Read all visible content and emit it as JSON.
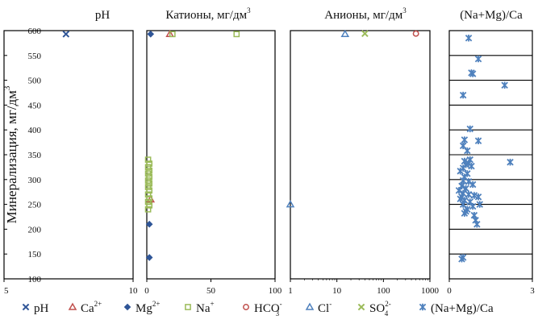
{
  "chart_data": [
    {
      "type": "scatter",
      "title": "pH",
      "ylabel": "Минерализация, мг/дм",
      "ylabel_sup": "3",
      "xlim": [
        5,
        10
      ],
      "ylim": [
        100,
        600
      ],
      "xticks": [
        "5",
        "10"
      ],
      "yticks": [
        "100",
        "150",
        "200",
        "250",
        "300",
        "350",
        "400",
        "450",
        "500",
        "550",
        "600"
      ],
      "grid": false,
      "series": [
        {
          "name": "pH",
          "marker": "x",
          "color": "#2f5597",
          "points": [
            [
              7.4,
              593
            ]
          ]
        }
      ]
    },
    {
      "type": "scatter",
      "title": "Катионы, мг/дм",
      "title_sup": "3",
      "xlim": [
        0,
        100
      ],
      "ylim": [
        100,
        600
      ],
      "xticks": [
        "0",
        "50",
        "100"
      ],
      "grid": false,
      "series": [
        {
          "name": "Ca",
          "marker": "triangle",
          "color": "#c0504d",
          "points": [
            [
              3,
              260
            ],
            [
              18,
              593
            ]
          ]
        },
        {
          "name": "Mg",
          "marker": "diamond",
          "color": "#2f5597",
          "points": [
            [
              2,
              210
            ],
            [
              2,
              143
            ],
            [
              3,
              593
            ]
          ]
        },
        {
          "name": "Na",
          "marker": "square",
          "color": "#9bbb59",
          "points": [
            [
              1,
              340
            ],
            [
              2,
              332
            ],
            [
              1,
              325
            ],
            [
              2,
              318
            ],
            [
              1,
              312
            ],
            [
              2,
              305
            ],
            [
              1,
              298
            ],
            [
              2,
              292
            ],
            [
              1,
              285
            ],
            [
              2,
              278
            ],
            [
              1,
              270
            ],
            [
              2,
              262
            ],
            [
              1,
              255
            ],
            [
              2,
              248
            ],
            [
              1,
              240
            ],
            [
              20,
              593
            ],
            [
              70,
              593
            ]
          ]
        }
      ]
    },
    {
      "type": "scatter",
      "title": "Анионы, мг/дм",
      "title_sup": "3",
      "xlim": [
        1,
        1000
      ],
      "xscale": "log",
      "ylim": [
        100,
        600
      ],
      "xticks": [
        "1",
        "10",
        "100",
        "1000"
      ],
      "grid": false,
      "series": [
        {
          "name": "HCO3",
          "marker": "circle",
          "color": "#c0504d",
          "points": [
            [
              500,
              594
            ]
          ]
        },
        {
          "name": "Cl",
          "marker": "triangle",
          "color": "#4f81bd",
          "points": [
            [
              1,
              250
            ],
            [
              15,
              593
            ]
          ]
        },
        {
          "name": "SO4",
          "marker": "x",
          "color": "#9bbb59",
          "points": [
            [
              40,
              594
            ]
          ]
        }
      ]
    },
    {
      "type": "scatter",
      "title": "(Na+Mg)/Ca",
      "xlim": [
        0,
        3
      ],
      "ylim": [
        100,
        600
      ],
      "xticks": [
        "0",
        "3"
      ],
      "grid": true,
      "gridlines": [
        150,
        200,
        250,
        300,
        350,
        400,
        450,
        500,
        550
      ],
      "series": [
        {
          "name": "(Na+Mg)/Ca",
          "marker": "asterisk",
          "color": "#4f81bd",
          "points": [
            [
              0.7,
              585
            ],
            [
              1.05,
              543
            ],
            [
              0.8,
              515
            ],
            [
              0.85,
              513
            ],
            [
              2.0,
              490
            ],
            [
              0.5,
              470
            ],
            [
              0.75,
              402
            ],
            [
              0.55,
              380
            ],
            [
              1.05,
              378
            ],
            [
              0.5,
              368
            ],
            [
              0.65,
              358
            ],
            [
              0.75,
              340
            ],
            [
              0.55,
              337
            ],
            [
              0.7,
              333
            ],
            [
              2.2,
              335
            ],
            [
              0.6,
              330
            ],
            [
              0.8,
              327
            ],
            [
              0.5,
              323
            ],
            [
              0.4,
              317
            ],
            [
              0.65,
              312
            ],
            [
              0.55,
              305
            ],
            [
              0.5,
              298
            ],
            [
              0.7,
              296
            ],
            [
              0.85,
              290
            ],
            [
              0.45,
              287
            ],
            [
              0.6,
              282
            ],
            [
              0.35,
              278
            ],
            [
              0.5,
              272
            ],
            [
              0.7,
              270
            ],
            [
              0.9,
              268
            ],
            [
              0.45,
              265
            ],
            [
              1.05,
              265
            ],
            [
              0.4,
              261
            ],
            [
              0.55,
              258
            ],
            [
              0.75,
              255
            ],
            [
              0.5,
              250
            ],
            [
              1.1,
              250
            ],
            [
              0.85,
              246
            ],
            [
              0.65,
              240
            ],
            [
              0.6,
              236
            ],
            [
              0.55,
              232
            ],
            [
              0.9,
              228
            ],
            [
              0.95,
              218
            ],
            [
              1.0,
              210
            ],
            [
              0.5,
              143
            ],
            [
              0.45,
              140
            ]
          ]
        }
      ]
    }
  ],
  "legend": [
    {
      "marker": "x",
      "color": "#2f5597",
      "text": "pH",
      "sup": "",
      "sub": ""
    },
    {
      "marker": "triangle",
      "color": "#c0504d",
      "text": "Ca",
      "sup": "2+",
      "sub": ""
    },
    {
      "marker": "diamond",
      "color": "#2f5597",
      "text": "Mg",
      "sup": "2+",
      "sub": ""
    },
    {
      "marker": "square",
      "color": "#9bbb59",
      "text": "Na",
      "sup": "+",
      "sub": ""
    },
    {
      "marker": "circle",
      "color": "#c0504d",
      "text": "HCO",
      "sup": "-",
      "sub": "3"
    },
    {
      "marker": "triangle",
      "color": "#4f81bd",
      "text": "Cl",
      "sup": "-",
      "sub": ""
    },
    {
      "marker": "x",
      "color": "#9bbb59",
      "text": "SO",
      "sup": "2-",
      "sub": "4"
    },
    {
      "marker": "asterisk",
      "color": "#4f81bd",
      "text": "(Na+Mg)/Ca",
      "sup": "",
      "sub": ""
    }
  ]
}
